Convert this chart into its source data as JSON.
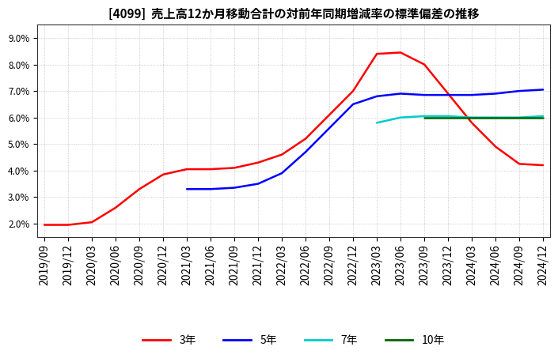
{
  "title": "[4099]  売上高12か月移動合計の対前年同期増減率の標準偏差の推移",
  "background_color": "#ffffff",
  "plot_bg_color": "#ffffff",
  "grid_color": "#bbbbbb",
  "ylim": [
    1.5,
    9.5
  ],
  "yticks": [
    2.0,
    3.0,
    4.0,
    5.0,
    6.0,
    7.0,
    8.0,
    9.0
  ],
  "series": {
    "3年": {
      "color": "#ff0000",
      "dates": [
        "2019/09",
        "2019/12",
        "2020/03",
        "2020/06",
        "2020/09",
        "2020/12",
        "2021/03",
        "2021/06",
        "2021/09",
        "2021/12",
        "2022/03",
        "2022/06",
        "2022/09",
        "2022/12",
        "2023/03",
        "2023/06",
        "2023/09",
        "2023/12",
        "2024/03",
        "2024/06",
        "2024/09",
        "2024/12"
      ],
      "values": [
        1.95,
        1.95,
        2.05,
        2.6,
        3.3,
        3.85,
        4.05,
        4.05,
        4.1,
        4.3,
        4.6,
        5.2,
        6.1,
        7.0,
        8.4,
        8.45,
        8.0,
        6.9,
        5.8,
        4.9,
        4.25,
        4.2
      ]
    },
    "5年": {
      "color": "#0000ff",
      "dates": [
        "2021/03",
        "2021/06",
        "2021/09",
        "2021/12",
        "2022/03",
        "2022/06",
        "2022/09",
        "2022/12",
        "2023/03",
        "2023/06",
        "2023/09",
        "2023/12",
        "2024/03",
        "2024/06",
        "2024/09",
        "2024/12"
      ],
      "values": [
        3.3,
        3.3,
        3.35,
        3.5,
        3.9,
        4.7,
        5.6,
        6.5,
        6.8,
        6.9,
        6.85,
        6.85,
        6.85,
        6.9,
        7.0,
        7.05
      ]
    },
    "7年": {
      "color": "#00cccc",
      "dates": [
        "2023/03",
        "2023/06",
        "2023/09",
        "2023/12",
        "2024/03",
        "2024/06",
        "2024/09",
        "2024/12"
      ],
      "values": [
        5.8,
        6.0,
        6.05,
        6.05,
        6.0,
        6.0,
        6.0,
        6.05
      ]
    },
    "10年": {
      "color": "#006400",
      "dates": [
        "2023/09",
        "2023/12",
        "2024/03",
        "2024/06",
        "2024/09",
        "2024/12"
      ],
      "values": [
        6.0,
        6.0,
        6.0,
        6.0,
        6.0,
        6.0
      ]
    }
  },
  "xtick_labels": [
    "2019/09",
    "2019/12",
    "2020/03",
    "2020/06",
    "2020/09",
    "2020/12",
    "2021/03",
    "2021/06",
    "2021/09",
    "2021/12",
    "2022/03",
    "2022/06",
    "2022/09",
    "2022/12",
    "2023/03",
    "2023/06",
    "2023/09",
    "2023/12",
    "2024/03",
    "2024/06",
    "2024/09",
    "2024/12"
  ],
  "legend_labels": [
    "3年",
    "5年",
    "7年",
    "10年"
  ],
  "legend_colors": [
    "#ff0000",
    "#0000ff",
    "#00cccc",
    "#006400"
  ],
  "title_fontsize": 11,
  "tick_fontsize": 8,
  "legend_fontsize": 10
}
